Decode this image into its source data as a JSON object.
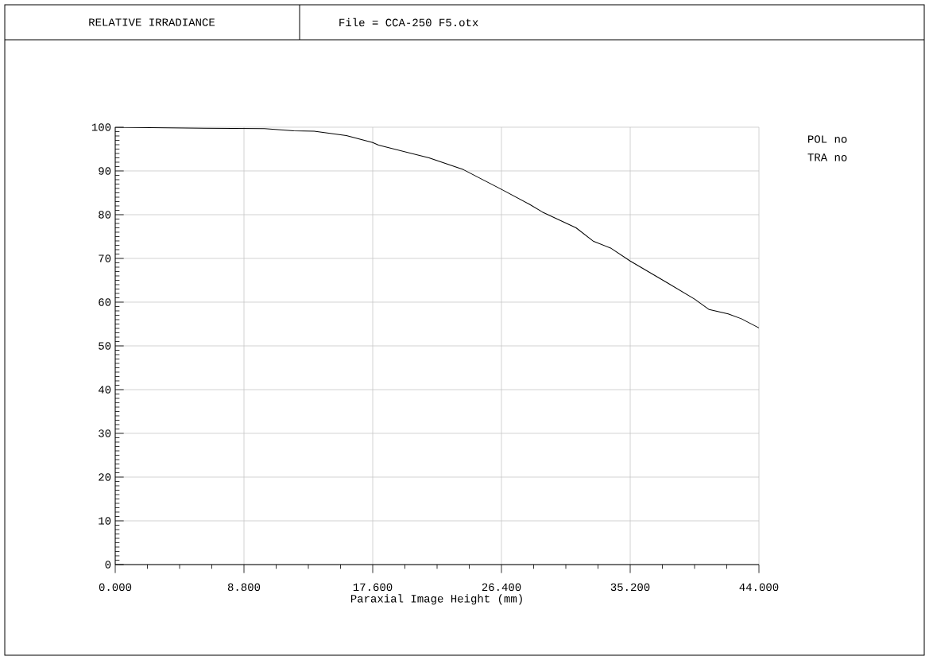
{
  "chart_data": {
    "type": "line",
    "title": "RELATIVE IRRADIANCE",
    "annotations": [
      "File = CCA-250 F5.otx",
      "POL no",
      "TRA no"
    ],
    "xlabel": "Paraxial Image Height (mm)",
    "xlim": [
      0,
      44
    ],
    "ylim": [
      0,
      100
    ],
    "xticks": [
      {
        "value": 0,
        "label": "0.000"
      },
      {
        "value": 8.8,
        "label": "8.800"
      },
      {
        "value": 17.6,
        "label": "17.600"
      },
      {
        "value": 26.4,
        "label": "26.400"
      },
      {
        "value": 35.2,
        "label": "35.200"
      },
      {
        "value": 44,
        "label": "44.000"
      }
    ],
    "yticks": [
      0,
      10,
      20,
      30,
      40,
      50,
      60,
      70,
      80,
      90,
      100
    ],
    "grid": true,
    "series": [
      {
        "color": "#000000",
        "x": [
          0,
          4.8,
          10.2,
          12.2,
          13.6,
          15.8,
          17.6,
          18.0,
          21.45,
          23.8,
          26.4,
          28.3,
          29.2,
          31.5,
          32.7,
          33.9,
          35.2,
          37.7,
          39.6,
          40.6,
          41.9,
          42.8,
          44
        ],
        "values": [
          100,
          99.8,
          99.7,
          99.2,
          99.1,
          98.1,
          96.5,
          95.9,
          93.0,
          90.3,
          85.8,
          82.4,
          80.6,
          77.0,
          73.9,
          72.3,
          69.4,
          64.5,
          60.7,
          58.3,
          57.3,
          56.2,
          54.1
        ]
      }
    ]
  }
}
